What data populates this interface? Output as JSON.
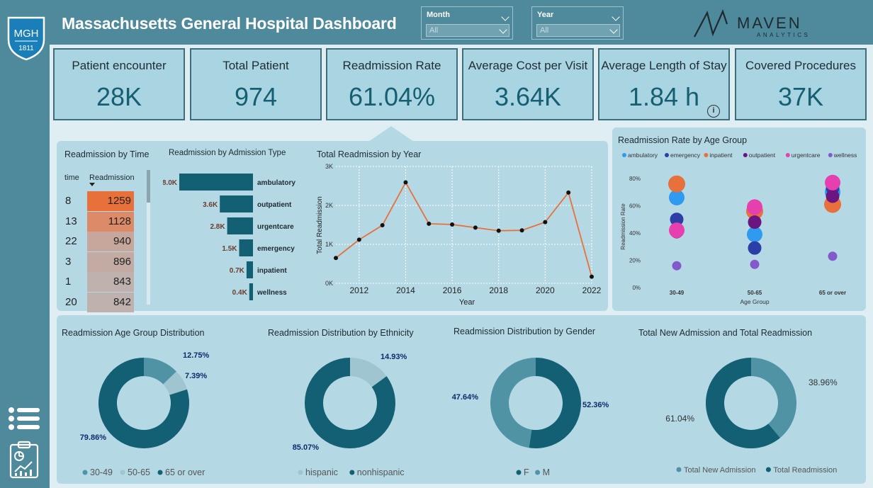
{
  "header": {
    "title": "Massachusetts General Hospital Dashboard",
    "logo_text": "MGH",
    "logo_year": "1811",
    "brand_name": "MAVEN",
    "brand_sub": "ANALYTICS"
  },
  "filters": [
    {
      "label": "Month",
      "value": "All"
    },
    {
      "label": "Year",
      "value": "All"
    }
  ],
  "kpis": [
    {
      "label": "Patient encounter",
      "value": "28K"
    },
    {
      "label": "Total Patient",
      "value": "974"
    },
    {
      "label": "Readmission Rate",
      "value": "61.04%"
    },
    {
      "label": "Average Cost per Visit",
      "value": "3.64K"
    },
    {
      "label": "Average Length of Stay",
      "value": "1.84 h"
    },
    {
      "label": "Covered Procedures",
      "value": "37K"
    }
  ],
  "readmission_by_time": {
    "title": "Readmission by Time",
    "col_time": "time",
    "col_readmission": "Readmission",
    "rows": [
      {
        "time": "8",
        "value": "1259",
        "color": "#e8703a"
      },
      {
        "time": "13",
        "value": "1128",
        "color": "#dd8a68"
      },
      {
        "time": "22",
        "value": "940",
        "color": "#c7a79c"
      },
      {
        "time": "3",
        "value": "896",
        "color": "#c3aba4"
      },
      {
        "time": "1",
        "value": "843",
        "color": "#bfb1ad"
      },
      {
        "time": "20",
        "value": "842",
        "color": "#bfb1ad"
      }
    ]
  },
  "colors": {
    "teal_dark": "#135f73",
    "teal_mid": "#4f93a5",
    "teal_light": "#9fc6d0",
    "orange": "#e8703a"
  },
  "chart_data": [
    {
      "id": "admission_type",
      "type": "bar",
      "orientation": "horizontal",
      "title": "Readmission by Admission Type",
      "categories": [
        "ambulatory",
        "outpatient",
        "urgentcare",
        "emergency",
        "inpatient",
        "wellness"
      ],
      "values": [
        8000,
        3600,
        2800,
        1500,
        700,
        400
      ],
      "labels": [
        "8.0K",
        "3.6K",
        "2.8K",
        "1.5K",
        "0.7K",
        "0.4K"
      ]
    },
    {
      "id": "by_year",
      "type": "line",
      "title": "Total Readmission by Year",
      "xlabel": "Year",
      "ylabel": "Total Readmission",
      "x": [
        2011,
        2012,
        2013,
        2014,
        2015,
        2016,
        2017,
        2018,
        2019,
        2020,
        2021,
        2022
      ],
      "values": [
        650,
        1120,
        1490,
        2590,
        1530,
        1510,
        1430,
        1350,
        1360,
        1570,
        2330,
        170
      ],
      "xticks": [
        "2012",
        "2014",
        "2016",
        "2018",
        "2020",
        "2022"
      ],
      "yticks": [
        "0K",
        "1K",
        "2K",
        "3K"
      ],
      "ylim": [
        0,
        3000
      ]
    },
    {
      "id": "age_group_rate",
      "type": "scatter",
      "title": "Readmission Rate by Age Group",
      "xlabel": "Age Group",
      "ylabel": "Readmission Rate",
      "categories": [
        "30-49",
        "50-65",
        "65 or over"
      ],
      "yticks": [
        "0%",
        "20%",
        "40%",
        "60%",
        "80%"
      ],
      "ylim": [
        0,
        80
      ],
      "series": [
        {
          "name": "ambulatory",
          "color": "#2f9bf0",
          "values": [
            66,
            39,
            70
          ]
        },
        {
          "name": "emergency",
          "color": "#2b3fa6",
          "values": [
            50,
            29,
            73
          ]
        },
        {
          "name": "inpatient",
          "color": "#e8703a",
          "values": [
            76,
            56,
            61
          ]
        },
        {
          "name": "outpatient",
          "color": "#6a1580",
          "values": [
            41,
            48,
            67
          ]
        },
        {
          "name": "urgentcare",
          "color": "#e640ae",
          "values": [
            42,
            59,
            77
          ]
        },
        {
          "name": "wellness",
          "color": "#8459cc",
          "values": [
            16,
            17,
            23
          ]
        }
      ]
    },
    {
      "id": "age_dist",
      "type": "pie",
      "title": "Readmission Age Group Distribution",
      "categories": [
        "30-49",
        "50-65",
        "65 or over"
      ],
      "values": [
        12.75,
        7.39,
        79.86
      ],
      "labels": [
        "12.75%",
        "7.39%",
        "79.86%"
      ],
      "colors": [
        "#4f93a5",
        "#9fc6d0",
        "#135f73"
      ]
    },
    {
      "id": "ethnicity_dist",
      "type": "pie",
      "title": "Readmission Distribution by Ethnicity",
      "categories": [
        "hispanic",
        "nonhispanic"
      ],
      "values": [
        14.93,
        85.07
      ],
      "labels": [
        "14.93%",
        "85.07%"
      ],
      "colors": [
        "#9fc6d0",
        "#135f73"
      ]
    },
    {
      "id": "gender_dist",
      "type": "pie",
      "title": "Readmission Distribution by Gender",
      "categories": [
        "F",
        "M"
      ],
      "values": [
        52.36,
        47.64
      ],
      "labels": [
        "52.36%",
        "47.64%"
      ],
      "colors": [
        "#135f73",
        "#4f93a5"
      ]
    },
    {
      "id": "admission_vs_readmission",
      "type": "pie",
      "title": "Total New Admission and Total Readmission",
      "categories": [
        "Total New Admission",
        "Total Readmission"
      ],
      "values": [
        38.96,
        61.04
      ],
      "labels": [
        "38.96%",
        "61.04%"
      ],
      "colors": [
        "#4f93a5",
        "#135f73"
      ]
    }
  ]
}
